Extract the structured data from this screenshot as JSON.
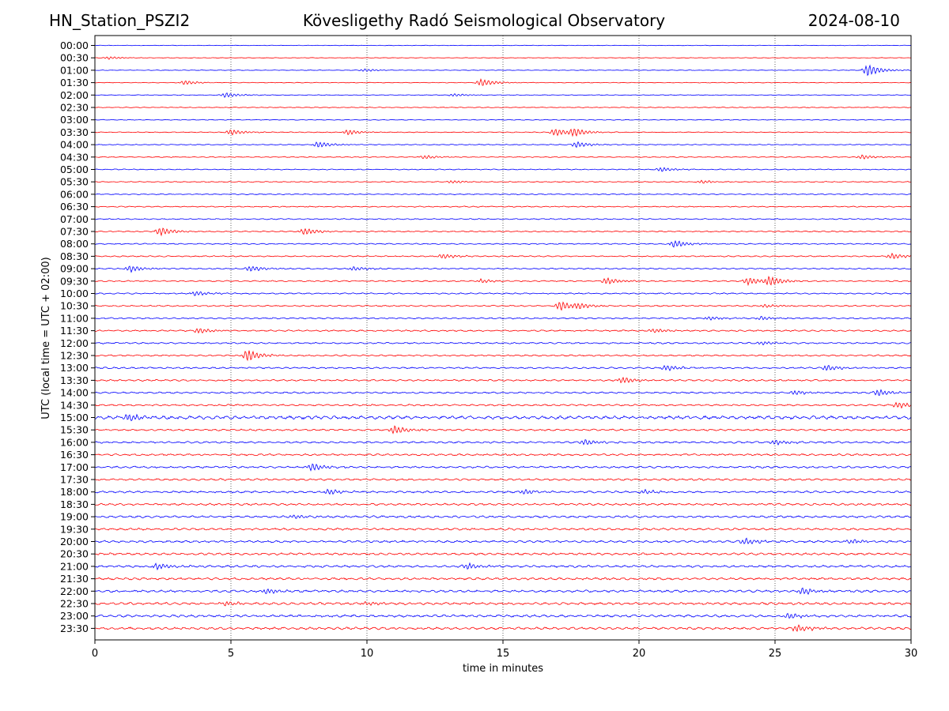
{
  "header": {
    "station": "HN_Station_PSZI2",
    "title": "Kövesligethy Radó Seismological Observatory",
    "date": "2024-08-10"
  },
  "chart_data": {
    "type": "line",
    "title": "Kövesligethy Radó Seismological Observatory",
    "xlabel": "time in minutes",
    "ylabel": "UTC (local time = UTC + 02:00)",
    "xlim": [
      0,
      30
    ],
    "xticks": [
      0,
      5,
      10,
      15,
      20,
      25,
      30
    ],
    "grid": "vertical dotted lines at every 5 minutes",
    "row_labels": [
      "00:00",
      "00:30",
      "01:00",
      "01:30",
      "02:00",
      "02:30",
      "03:00",
      "03:30",
      "04:00",
      "04:30",
      "05:00",
      "05:30",
      "06:00",
      "06:30",
      "07:00",
      "07:30",
      "08:00",
      "08:30",
      "09:00",
      "09:30",
      "10:00",
      "10:30",
      "11:00",
      "11:30",
      "12:00",
      "12:30",
      "13:00",
      "13:30",
      "14:00",
      "14:30",
      "15:00",
      "15:30",
      "16:00",
      "16:30",
      "17:00",
      "17:30",
      "18:00",
      "18:30",
      "19:00",
      "19:30",
      "20:00",
      "20:30",
      "21:00",
      "21:30",
      "22:00",
      "22:30",
      "23:00",
      "23:30"
    ],
    "colors": [
      "#0000ff",
      "#ff0000"
    ],
    "events": [
      {
        "row": 1,
        "t": 0.5,
        "amp": 0.4
      },
      {
        "row": 2,
        "t": 28.4,
        "amp": 1.6
      },
      {
        "row": 2,
        "t": 9.9,
        "amp": 0.4
      },
      {
        "row": 3,
        "t": 3.3,
        "amp": 0.6
      },
      {
        "row": 3,
        "t": 14.2,
        "amp": 1.0
      },
      {
        "row": 4,
        "t": 4.8,
        "amp": 0.7
      },
      {
        "row": 4,
        "t": 13.2,
        "amp": 0.4
      },
      {
        "row": 7,
        "t": 5.0,
        "amp": 0.8
      },
      {
        "row": 7,
        "t": 9.3,
        "amp": 0.7
      },
      {
        "row": 7,
        "t": 16.9,
        "amp": 1.0
      },
      {
        "row": 7,
        "t": 17.6,
        "amp": 1.0
      },
      {
        "row": 8,
        "t": 8.2,
        "amp": 0.8
      },
      {
        "row": 8,
        "t": 17.7,
        "amp": 0.8
      },
      {
        "row": 9,
        "t": 12.1,
        "amp": 0.5
      },
      {
        "row": 9,
        "t": 28.2,
        "amp": 0.6
      },
      {
        "row": 10,
        "t": 20.8,
        "amp": 0.6
      },
      {
        "row": 11,
        "t": 13.1,
        "amp": 0.4
      },
      {
        "row": 11,
        "t": 22.3,
        "amp": 0.4
      },
      {
        "row": 15,
        "t": 2.4,
        "amp": 1.1
      },
      {
        "row": 15,
        "t": 7.7,
        "amp": 0.9
      },
      {
        "row": 16,
        "t": 21.3,
        "amp": 1.0
      },
      {
        "row": 17,
        "t": 12.8,
        "amp": 0.7
      },
      {
        "row": 17,
        "t": 29.3,
        "amp": 0.8
      },
      {
        "row": 18,
        "t": 1.3,
        "amp": 0.9
      },
      {
        "row": 18,
        "t": 5.7,
        "amp": 0.8
      },
      {
        "row": 18,
        "t": 9.5,
        "amp": 0.6
      },
      {
        "row": 19,
        "t": 14.2,
        "amp": 0.5
      },
      {
        "row": 19,
        "t": 18.8,
        "amp": 0.9
      },
      {
        "row": 19,
        "t": 24.0,
        "amp": 1.0
      },
      {
        "row": 19,
        "t": 24.8,
        "amp": 1.2
      },
      {
        "row": 20,
        "t": 3.7,
        "amp": 0.6
      },
      {
        "row": 21,
        "t": 17.1,
        "amp": 1.3
      },
      {
        "row": 21,
        "t": 17.8,
        "amp": 0.6
      },
      {
        "row": 21,
        "t": 24.6,
        "amp": 0.4
      },
      {
        "row": 22,
        "t": 22.6,
        "amp": 0.5
      },
      {
        "row": 22,
        "t": 24.5,
        "amp": 0.5
      },
      {
        "row": 23,
        "t": 3.8,
        "amp": 0.7
      },
      {
        "row": 23,
        "t": 20.5,
        "amp": 0.6
      },
      {
        "row": 24,
        "t": 24.5,
        "amp": 0.5
      },
      {
        "row": 25,
        "t": 5.6,
        "amp": 1.6
      },
      {
        "row": 26,
        "t": 21.0,
        "amp": 0.7
      },
      {
        "row": 26,
        "t": 26.9,
        "amp": 0.8
      },
      {
        "row": 27,
        "t": 19.4,
        "amp": 0.8
      },
      {
        "row": 28,
        "t": 25.7,
        "amp": 0.6
      },
      {
        "row": 28,
        "t": 28.8,
        "amp": 0.9
      },
      {
        "row": 29,
        "t": 29.5,
        "amp": 0.8
      },
      {
        "row": 30,
        "t": 1.2,
        "amp": 1.0
      },
      {
        "row": 31,
        "t": 11.0,
        "amp": 1.1
      },
      {
        "row": 32,
        "t": 18.0,
        "amp": 0.8
      },
      {
        "row": 32,
        "t": 25.0,
        "amp": 0.7
      },
      {
        "row": 34,
        "t": 8.0,
        "amp": 1.0
      },
      {
        "row": 36,
        "t": 8.6,
        "amp": 0.7
      },
      {
        "row": 36,
        "t": 15.8,
        "amp": 0.6
      },
      {
        "row": 36,
        "t": 20.2,
        "amp": 0.6
      },
      {
        "row": 38,
        "t": 7.3,
        "amp": 0.5
      },
      {
        "row": 40,
        "t": 23.9,
        "amp": 0.8
      },
      {
        "row": 40,
        "t": 27.8,
        "amp": 0.6
      },
      {
        "row": 42,
        "t": 2.3,
        "amp": 0.9
      },
      {
        "row": 42,
        "t": 13.7,
        "amp": 0.8
      },
      {
        "row": 44,
        "t": 6.3,
        "amp": 0.7
      },
      {
        "row": 44,
        "t": 26.0,
        "amp": 0.9
      },
      {
        "row": 45,
        "t": 4.8,
        "amp": 0.6
      },
      {
        "row": 45,
        "t": 10.0,
        "amp": 0.5
      },
      {
        "row": 46,
        "t": 25.5,
        "amp": 0.8
      },
      {
        "row": 47,
        "t": 25.8,
        "amp": 1.0
      }
    ]
  }
}
